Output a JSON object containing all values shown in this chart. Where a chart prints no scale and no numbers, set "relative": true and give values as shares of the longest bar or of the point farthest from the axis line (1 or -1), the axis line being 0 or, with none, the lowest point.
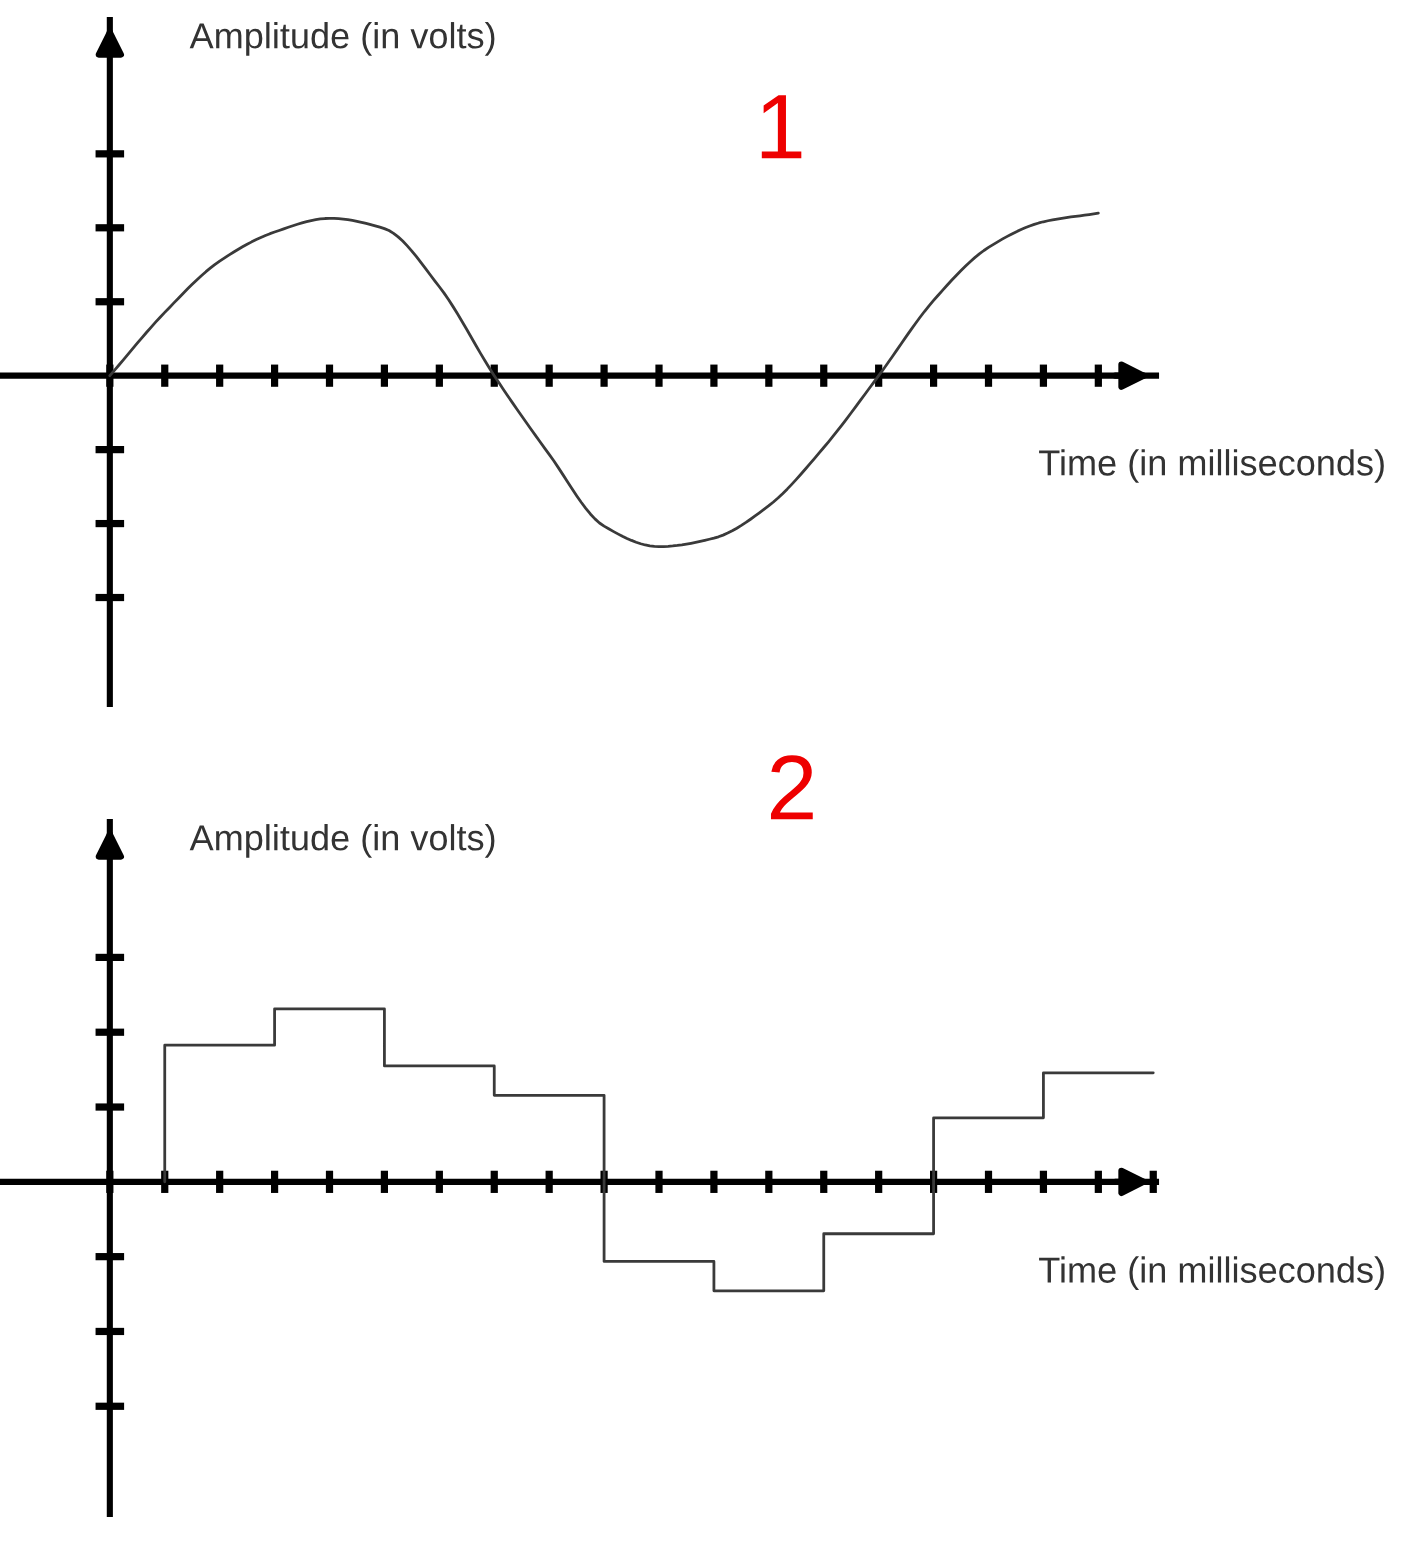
{
  "chart_data": [
    {
      "type": "line",
      "title": "1",
      "xlabel": "Time (in milliseconds)",
      "ylabel": "Amplitude (in volts)",
      "relative": true,
      "categories": [
        null,
        null,
        null,
        null,
        null,
        null,
        null,
        null,
        null,
        null,
        null,
        null,
        null,
        null,
        null,
        null,
        null,
        null,
        null
      ],
      "series": [
        {
          "color": "#3a3a3a",
          "values": [
            0,
            0.37,
            0.67,
            0.84,
            0.92,
            0.86,
            0.52,
            0,
            -0.46,
            -0.88,
            -1,
            -0.95,
            -0.76,
            -0.42,
            0,
            0.44,
            0.75,
            0.9,
            0.95
          ]
        }
      ]
    },
    {
      "type": "step",
      "title": "2",
      "xlabel": "Time (in milliseconds)",
      "ylabel": "Amplitude (in volts)",
      "relative": true,
      "categories": [
        null,
        null,
        null,
        null,
        null,
        null,
        null,
        null,
        null,
        null,
        null,
        null,
        null,
        null,
        null,
        null,
        null,
        null,
        null,
        null
      ],
      "series": [
        {
          "color": "#3a3a3a",
          "values": [
            null,
            0,
            0.79,
            0.79,
            1,
            1,
            0.67,
            0.67,
            0.5,
            0.5,
            -0.46,
            -0.46,
            -0.63,
            -0.63,
            -0.3,
            -0.3,
            0.37,
            0.37,
            0.63,
            0.63
          ]
        }
      ]
    }
  ]
}
